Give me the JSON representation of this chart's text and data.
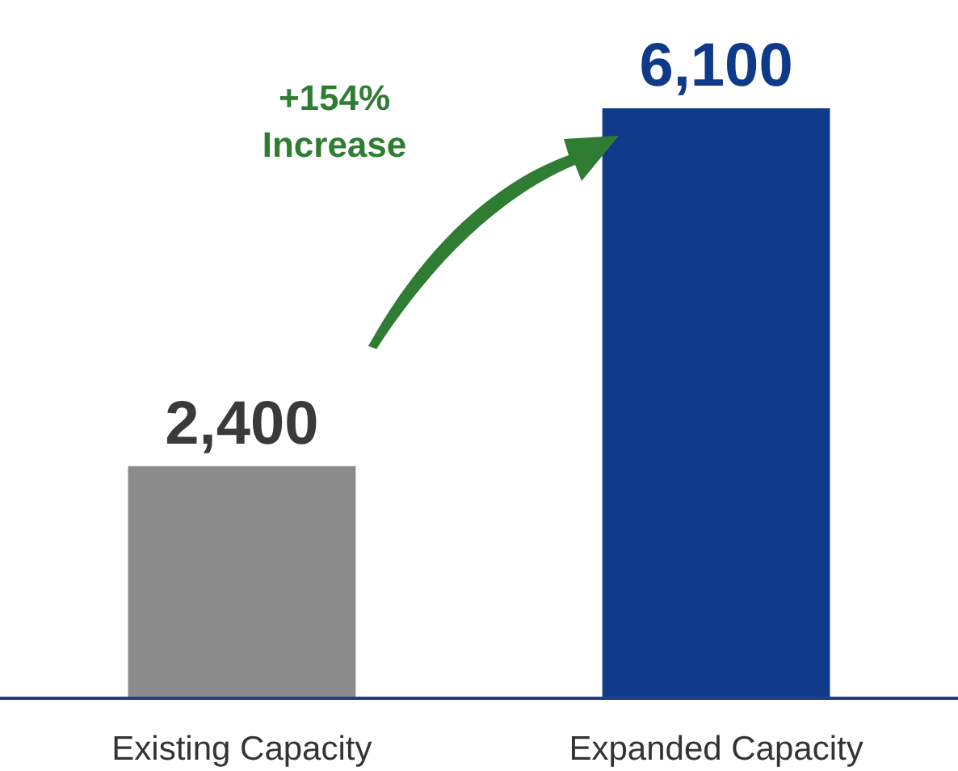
{
  "chart_data": {
    "type": "bar",
    "categories": [
      "Existing Capacity",
      "Expanded Capacity"
    ],
    "values": [
      2400,
      6100
    ],
    "colors": [
      "#8c8c8c",
      "#0f3a8a"
    ],
    "value_labels": [
      "2,400",
      "6,100"
    ],
    "annotations": [
      "+154%\nIncrease"
    ]
  }
}
